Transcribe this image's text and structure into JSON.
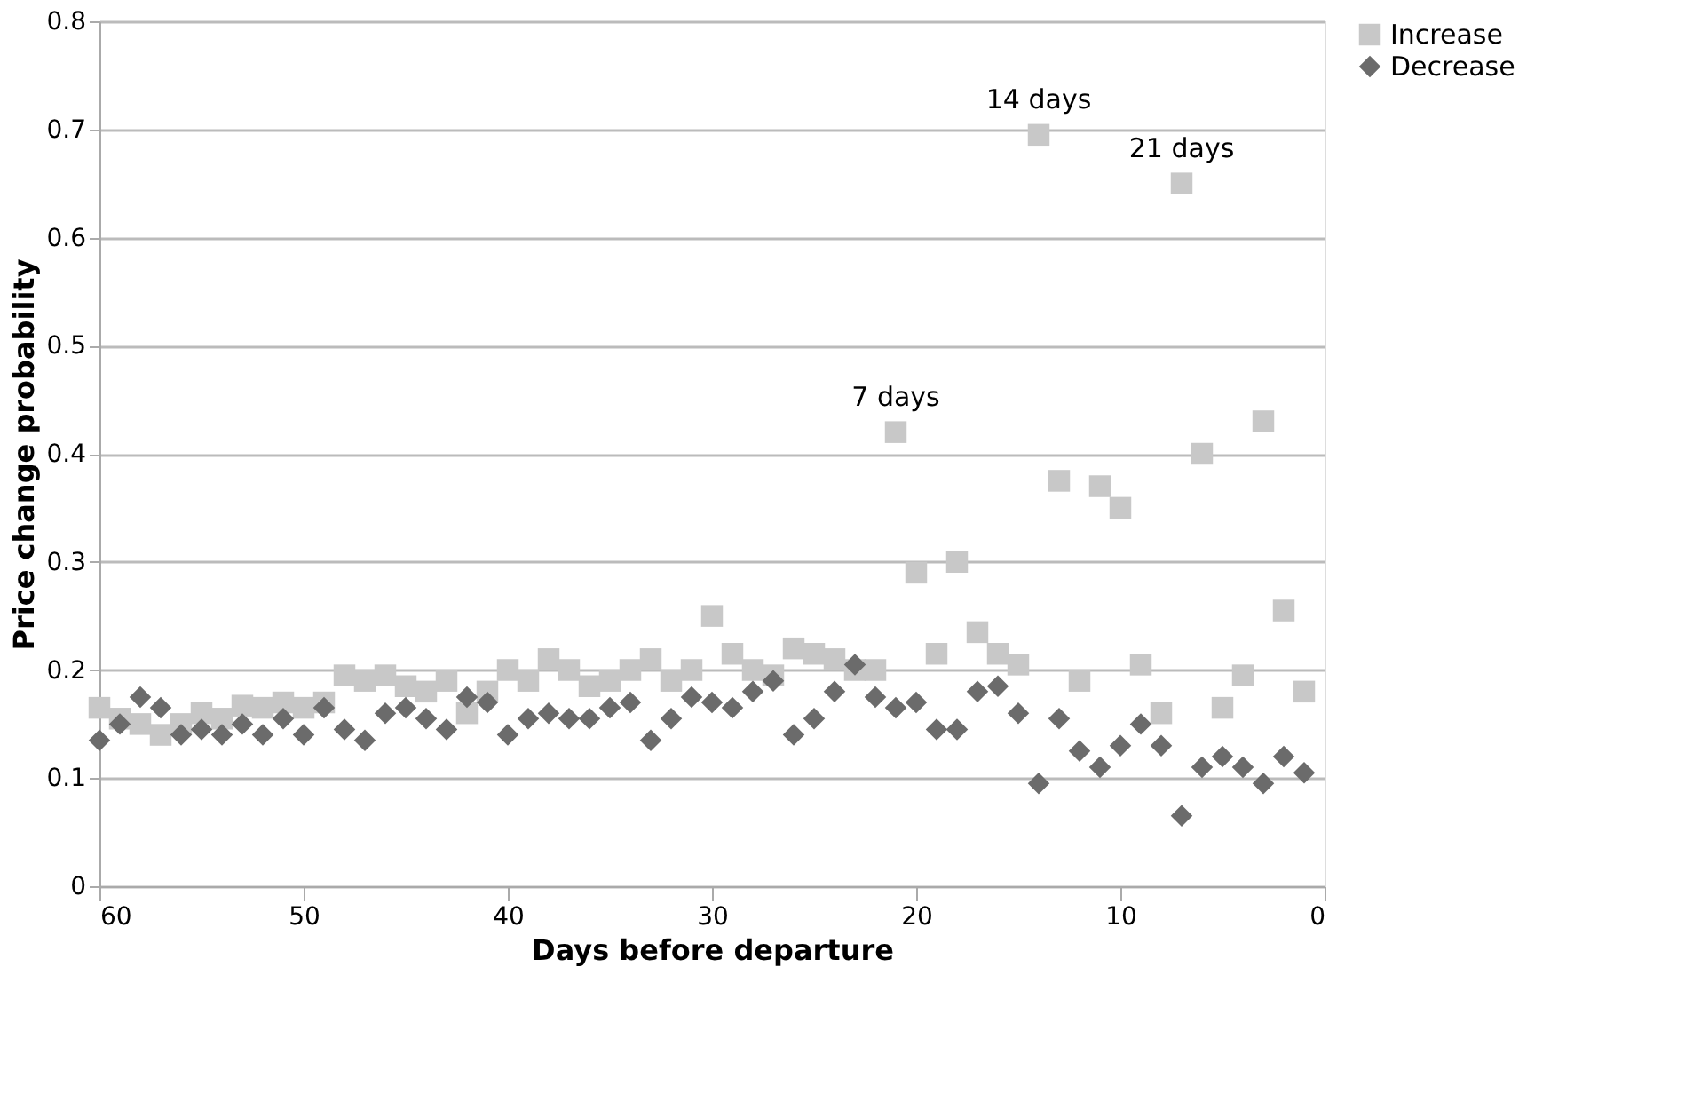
{
  "chart_data": {
    "type": "scatter",
    "xlabel": "Days before departure",
    "ylabel": "Price change probability",
    "x": [
      60,
      59,
      58,
      57,
      56,
      55,
      54,
      53,
      52,
      51,
      50,
      49,
      48,
      47,
      46,
      45,
      44,
      43,
      42,
      41,
      40,
      39,
      38,
      37,
      36,
      35,
      34,
      33,
      32,
      31,
      30,
      29,
      28,
      27,
      26,
      25,
      24,
      23,
      22,
      21,
      20,
      19,
      18,
      17,
      16,
      15,
      14,
      13,
      12,
      11,
      10,
      9,
      8,
      7,
      6,
      5,
      4,
      3,
      2,
      1
    ],
    "series": [
      {
        "name": "Increase",
        "color": "#c8c8c8",
        "marker": "square",
        "values": [
          0.165,
          0.155,
          0.15,
          0.14,
          0.15,
          0.16,
          0.155,
          0.167,
          0.165,
          0.17,
          0.165,
          0.17,
          0.195,
          0.19,
          0.195,
          0.185,
          0.18,
          0.19,
          0.16,
          0.18,
          0.2,
          0.19,
          0.21,
          0.2,
          0.185,
          0.19,
          0.2,
          0.21,
          0.19,
          0.2,
          0.25,
          0.215,
          0.2,
          0.195,
          0.22,
          0.215,
          0.21,
          0.2,
          0.2,
          0.42,
          0.29,
          0.215,
          0.3,
          0.235,
          0.215,
          0.205,
          0.695,
          0.375,
          0.19,
          0.37,
          0.35,
          0.205,
          0.16,
          0.65,
          0.4,
          0.165,
          0.195,
          0.43,
          0.255,
          0.18
        ]
      },
      {
        "name": "Decrease",
        "color": "#6b6b6b",
        "marker": "diamond",
        "values": [
          0.135,
          0.15,
          0.175,
          0.165,
          0.14,
          0.145,
          0.14,
          0.15,
          0.14,
          0.155,
          0.14,
          0.165,
          0.145,
          0.135,
          0.16,
          0.165,
          0.155,
          0.145,
          0.175,
          0.17,
          0.14,
          0.155,
          0.16,
          0.155,
          0.155,
          0.165,
          0.17,
          0.135,
          0.155,
          0.175,
          0.17,
          0.165,
          0.18,
          0.19,
          0.14,
          0.155,
          0.18,
          0.205,
          0.175,
          0.165,
          0.17,
          0.145,
          0.145,
          0.18,
          0.185,
          0.16,
          0.095,
          0.155,
          0.125,
          0.11,
          0.13,
          0.15,
          0.13,
          0.065,
          0.11,
          0.12,
          0.11,
          0.095,
          0.12,
          0.105
        ]
      }
    ],
    "annotations": [
      {
        "text": "14 days",
        "x": 14,
        "y": 0.695
      },
      {
        "text": "21 days",
        "x": 7,
        "y": 0.65
      },
      {
        "text": "7 days",
        "x": 21,
        "y": 0.42
      }
    ],
    "xlim": [
      60,
      0
    ],
    "xticks": [
      60,
      50,
      40,
      30,
      20,
      10,
      0
    ],
    "ylim": [
      0,
      0.8
    ],
    "yticks": [
      0,
      0.1,
      0.2,
      0.3,
      0.4,
      0.5,
      0.6,
      0.7,
      0.8
    ],
    "grid": "y",
    "legend": "right"
  }
}
